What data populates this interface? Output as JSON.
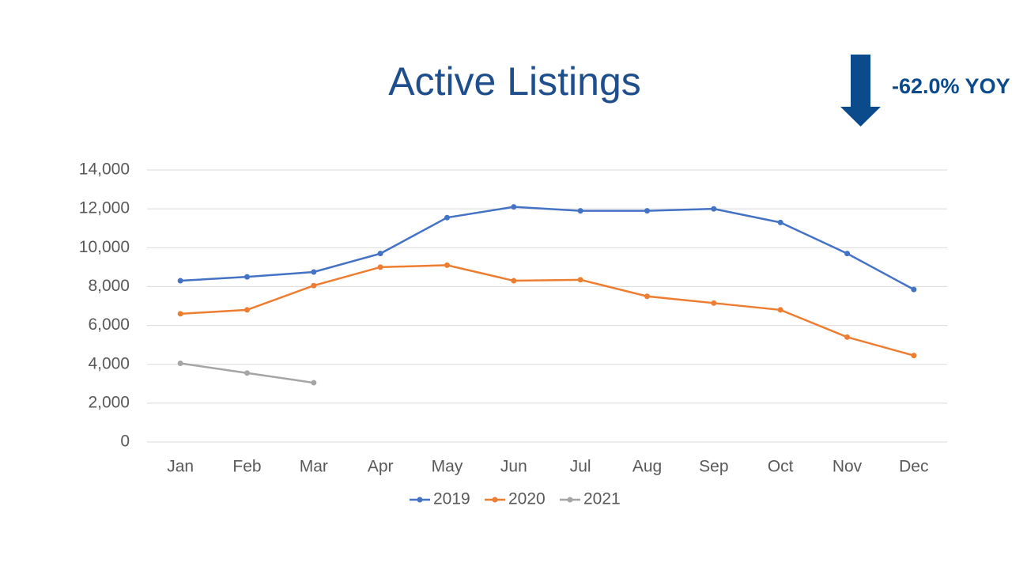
{
  "chart_data": {
    "type": "line",
    "title": "Active Listings",
    "annotation": "-62.0% YOY",
    "categories": [
      "Jan",
      "Feb",
      "Mar",
      "Apr",
      "May",
      "Jun",
      "Jul",
      "Aug",
      "Sep",
      "Oct",
      "Nov",
      "Dec"
    ],
    "series": [
      {
        "name": "2019",
        "color": "#4472c4",
        "values": [
          8300,
          8500,
          8750,
          9700,
          11550,
          12100,
          11900,
          11900,
          12000,
          11300,
          9700,
          7850
        ]
      },
      {
        "name": "2020",
        "color": "#ed7d31",
        "values": [
          6600,
          6800,
          8050,
          9000,
          9100,
          8300,
          8350,
          7500,
          7150,
          6800,
          5400,
          4450
        ]
      },
      {
        "name": "2021",
        "color": "#a5a5a5",
        "values": [
          4050,
          3550,
          3050,
          null,
          null,
          null,
          null,
          null,
          null,
          null,
          null,
          null
        ]
      }
    ],
    "ylim": [
      0,
      14000
    ],
    "yticks": [
      0,
      {
        "value": 2000,
        "label": "2,000"
      },
      {
        "value": 4000,
        "label": "4,000"
      },
      {
        "value": 6000,
        "label": "6,000"
      },
      {
        "value": 8000,
        "label": "8,000"
      },
      {
        "value": 10000,
        "label": "10,000"
      },
      {
        "value": 12000,
        "label": "12,000"
      },
      {
        "value": 14000,
        "label": "14,000"
      }
    ],
    "grid": true,
    "legend": "bottom"
  }
}
